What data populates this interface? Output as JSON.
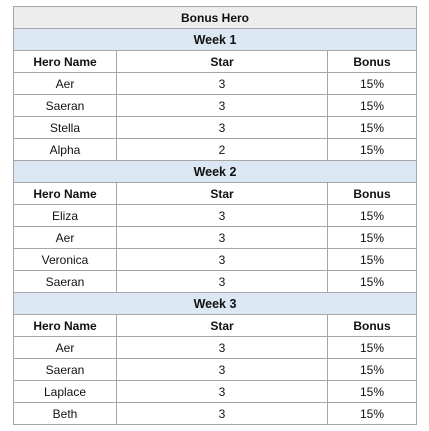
{
  "title": "Bonus Hero",
  "columns": [
    "Hero Name",
    "Star",
    "Bonus"
  ],
  "weeks": [
    {
      "label": "Week 1",
      "rows": [
        {
          "hero": "Aer",
          "star": "3",
          "bonus": "15%"
        },
        {
          "hero": "Saeran",
          "star": "3",
          "bonus": "15%"
        },
        {
          "hero": "Stella",
          "star": "3",
          "bonus": "15%"
        },
        {
          "hero": "Alpha",
          "star": "2",
          "bonus": "15%"
        }
      ]
    },
    {
      "label": "Week 2",
      "rows": [
        {
          "hero": "Eliza",
          "star": "3",
          "bonus": "15%"
        },
        {
          "hero": "Aer",
          "star": "3",
          "bonus": "15%"
        },
        {
          "hero": "Veronica",
          "star": "3",
          "bonus": "15%"
        },
        {
          "hero": "Saeran",
          "star": "3",
          "bonus": "15%"
        }
      ]
    },
    {
      "label": "Week 3",
      "rows": [
        {
          "hero": "Aer",
          "star": "3",
          "bonus": "15%"
        },
        {
          "hero": "Saeran",
          "star": "3",
          "bonus": "15%"
        },
        {
          "hero": "Laplace",
          "star": "3",
          "bonus": "15%"
        },
        {
          "hero": "Beth",
          "star": "3",
          "bonus": "15%"
        }
      ]
    }
  ]
}
